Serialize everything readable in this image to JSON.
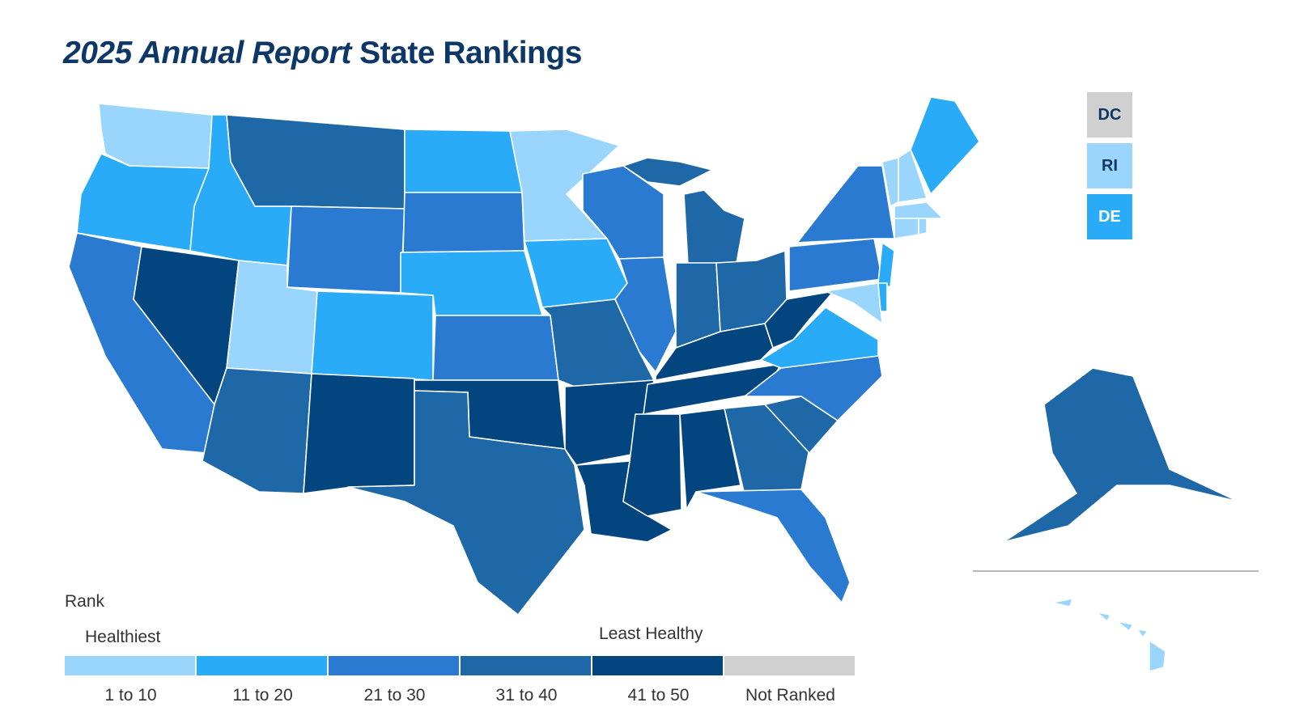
{
  "title": {
    "italic_part": "2025 Annual Report",
    "regular_part": "State Rankings"
  },
  "colors": {
    "tier1": "#99D5FC",
    "tier2": "#29ABF7",
    "tier3": "#2A7AD2",
    "tier4": "#1F68A7",
    "tier5": "#02457F",
    "not_ranked": "#D0D0D0",
    "title": "#0C3766"
  },
  "legend": {
    "heading": "Rank",
    "left_label": "Healthiest",
    "right_label": "Least Healthy",
    "items": [
      {
        "label": "1 to 10",
        "tier": "tier1"
      },
      {
        "label": "11 to 20",
        "tier": "tier2"
      },
      {
        "label": "21 to 30",
        "tier": "tier3"
      },
      {
        "label": "31 to 40",
        "tier": "tier4"
      },
      {
        "label": "41 to 50",
        "tier": "tier5"
      },
      {
        "label": "Not Ranked",
        "tier": "not_ranked"
      }
    ]
  },
  "small_states": [
    {
      "label": "DC",
      "tier": "not_ranked"
    },
    {
      "label": "RI",
      "tier": "tier1"
    },
    {
      "label": "DE",
      "tier": "tier2"
    }
  ],
  "states": {
    "WA": "tier1",
    "OR": "tier2",
    "CA": "tier3",
    "NV": "tier5",
    "ID": "tier2",
    "MT": "tier4",
    "WY": "tier3",
    "UT": "tier1",
    "CO": "tier2",
    "AZ": "tier4",
    "NM": "tier5",
    "ND": "tier2",
    "SD": "tier3",
    "NE": "tier2",
    "KS": "tier3",
    "OK": "tier5",
    "TX": "tier4",
    "MN": "tier1",
    "IA": "tier2",
    "MO": "tier4",
    "AR": "tier5",
    "LA": "tier5",
    "WI": "tier3",
    "IL": "tier3",
    "MI": "tier4",
    "IN": "tier4",
    "OH": "tier4",
    "KY": "tier5",
    "TN": "tier5",
    "MS": "tier5",
    "AL": "tier5",
    "GA": "tier4",
    "FL": "tier3",
    "SC": "tier4",
    "NC": "tier3",
    "VA": "tier2",
    "WV": "tier5",
    "MD": "tier1",
    "DE": "tier2",
    "PA": "tier3",
    "NJ": "tier2",
    "NY": "tier3",
    "CT": "tier1",
    "RI": "tier1",
    "MA": "tier1",
    "VT": "tier1",
    "NH": "tier1",
    "ME": "tier2",
    "AK": "tier4",
    "HI": "tier1"
  }
}
